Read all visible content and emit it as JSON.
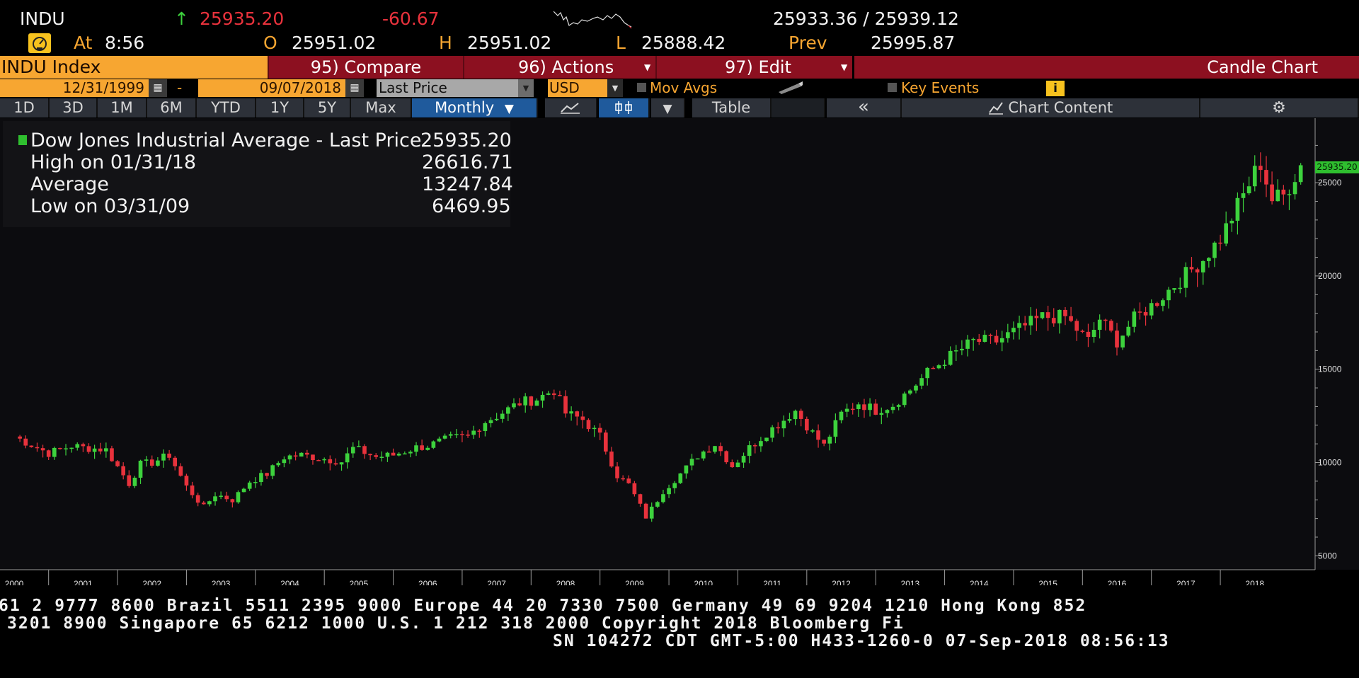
{
  "quote": {
    "ticker": "INDU",
    "arrow": "↑",
    "last": "25935.20",
    "change": "-60.67",
    "bid_ask": "25933.36 / 25939.12",
    "at_label": "At",
    "time": "8:56",
    "open_label": "O",
    "open": "25951.02",
    "high_label": "H",
    "high": "25951.02",
    "low_label": "L",
    "low": "25888.42",
    "prev_label": "Prev",
    "prev": "25995.87"
  },
  "titlebar": {
    "security": "INDU Index",
    "compare": "95) Compare",
    "actions": "96) Actions",
    "edit": "97) Edit",
    "chart_type": "Candle Chart"
  },
  "controls": {
    "start_date": "12/31/1999",
    "dash": "-",
    "end_date": "09/07/2018",
    "field": "Last Price",
    "currency": "USD",
    "mov_avgs": "Mov Avgs",
    "key_events": "Key Events"
  },
  "ranges": [
    "1D",
    "3D",
    "1M",
    "6M",
    "YTD",
    "1Y",
    "5Y",
    "Max"
  ],
  "periodicity": "Monthly",
  "toolbar": {
    "table": "Table",
    "collapse": "«",
    "chart_content": "Chart Content"
  },
  "legend": {
    "series": "Dow Jones Industrial Average - Last Price",
    "series_value": "25935.20",
    "high_label": "High on 01/31/18",
    "high_value": "26616.71",
    "avg_label": "Average",
    "avg_value": "13247.84",
    "low_label": "Low on 03/31/09",
    "low_value": "6469.95"
  },
  "price_tag": "25935.20",
  "colors": {
    "amber": "#f7a631",
    "up": "#3dd23d",
    "down": "#e8323c",
    "titlebar": "#8c1020",
    "selected": "#1f5a9c"
  },
  "chart_data": {
    "type": "candlestick",
    "periodicity": "monthly",
    "y_ticks": [
      5000,
      10000,
      15000,
      20000,
      25000
    ],
    "ylim": [
      4500,
      28500
    ],
    "x_ticks": [
      "2000",
      "2001",
      "2002",
      "2003",
      "2004",
      "2005",
      "2006",
      "2007",
      "2008",
      "2009",
      "2010",
      "2011",
      "2012",
      "2013",
      "2014",
      "2015",
      "2016",
      "2017",
      "2018"
    ],
    "xlim": [
      2000.0,
      2018.67
    ],
    "grid": false,
    "last_value": 25935.2,
    "series_closes": [
      [
        2000.0,
        11400
      ],
      [
        2000.5,
        10500
      ],
      [
        2000.83,
        10900
      ],
      [
        2001.0,
        10800
      ],
      [
        2001.33,
        10700
      ],
      [
        2001.67,
        8850
      ],
      [
        2001.83,
        9900
      ],
      [
        2002.0,
        10000
      ],
      [
        2002.25,
        10400
      ],
      [
        2002.5,
        8700
      ],
      [
        2002.75,
        7600
      ],
      [
        2002.92,
        8300
      ],
      [
        2003.17,
        7990
      ],
      [
        2003.42,
        9000
      ],
      [
        2003.67,
        9400
      ],
      [
        2003.92,
        10300
      ],
      [
        2004.17,
        10400
      ],
      [
        2004.5,
        10200
      ],
      [
        2004.75,
        10050
      ],
      [
        2004.92,
        10780
      ],
      [
        2005.25,
        10300
      ],
      [
        2005.5,
        10400
      ],
      [
        2005.83,
        10800
      ],
      [
        2006.0,
        10900
      ],
      [
        2006.33,
        11300
      ],
      [
        2006.58,
        11400
      ],
      [
        2006.83,
        12200
      ],
      [
        2007.0,
        12500
      ],
      [
        2007.33,
        13200
      ],
      [
        2007.58,
        13400
      ],
      [
        2007.83,
        13900
      ],
      [
        2008.0,
        12650
      ],
      [
        2008.25,
        12300
      ],
      [
        2008.5,
        11400
      ],
      [
        2008.75,
        9300
      ],
      [
        2008.92,
        8800
      ],
      [
        2009.17,
        7060
      ],
      [
        2009.42,
        8500
      ],
      [
        2009.75,
        9700
      ],
      [
        2009.92,
        10400
      ],
      [
        2010.17,
        11000
      ],
      [
        2010.42,
        9800
      ],
      [
        2010.67,
        10800
      ],
      [
        2010.92,
        11600
      ],
      [
        2011.17,
        12300
      ],
      [
        2011.33,
        12800
      ],
      [
        2011.58,
        11600
      ],
      [
        2011.75,
        10900
      ],
      [
        2012.0,
        12600
      ],
      [
        2012.25,
        13200
      ],
      [
        2012.5,
        12800
      ],
      [
        2012.75,
        13100
      ],
      [
        2013.0,
        13900
      ],
      [
        2013.25,
        14800
      ],
      [
        2013.5,
        15500
      ],
      [
        2013.92,
        16500
      ],
      [
        2014.25,
        16500
      ],
      [
        2014.5,
        17000
      ],
      [
        2014.92,
        17800
      ],
      [
        2015.25,
        17800
      ],
      [
        2015.58,
        16500
      ],
      [
        2015.75,
        17700
      ],
      [
        2016.0,
        16500
      ],
      [
        2016.25,
        17700
      ],
      [
        2016.5,
        18400
      ],
      [
        2016.92,
        19800
      ],
      [
        2017.25,
        20900
      ],
      [
        2017.5,
        22000
      ],
      [
        2017.83,
        24300
      ],
      [
        2018.08,
        26100
      ],
      [
        2018.25,
        24100
      ],
      [
        2018.42,
        24300
      ],
      [
        2018.58,
        25400
      ],
      [
        2018.67,
        25935
      ]
    ]
  },
  "ticker_lines": [
    "61 2 9777 8600 Brazil 5511 2395 9000 Europe 44 20 7330 7500 Germany 49 69 9204 1210 Hong Kong 852",
    "3201 8900       Singapore 65 6212 1000       U.S. 1 212 318 2000        Copyright 2018 Bloomberg Fi",
    "SN 104272 CDT  GMT-5:00 H433-1260-0 07-Sep-2018 08:56:13"
  ]
}
